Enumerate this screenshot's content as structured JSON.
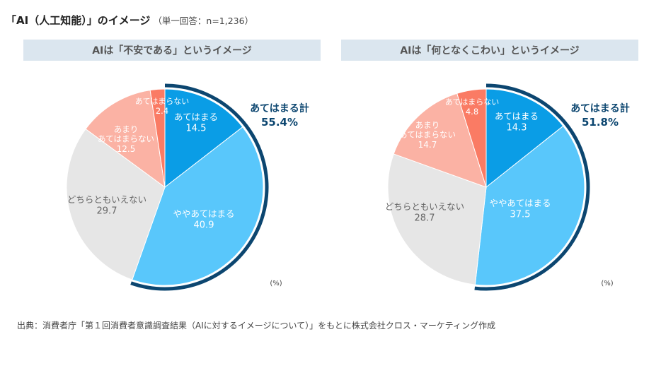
{
  "title": {
    "main": "「AI（人工知能）」のイメージ",
    "sub": "（単一回答：n=1,236）"
  },
  "colors": {
    "atehamaru": "#0a9de6",
    "yaya_atehamaru": "#59c7fb",
    "dochiratomo": "#e6e6e6",
    "amari": "#fbb2a4",
    "atehamaranai": "#fa7b64",
    "total_arc": "#0c4670",
    "header_bg": "#dbe6ef"
  },
  "unit_label": "(%)",
  "footer": "出典：消費者庁「第１回消費者意識調査結果（AIに対するイメージについて）」をもとに株式会社クロス・マーケティング作成",
  "chart_data": [
    {
      "type": "pie",
      "title": "AIは「不安である」というイメージ",
      "start": "12 o'clock, clockwise",
      "slices": [
        {
          "label": "あてはまる",
          "value": 14.5,
          "color_key": "atehamaru",
          "text_color": "#ffffff"
        },
        {
          "label": "ややあてはまる",
          "value": 40.9,
          "color_key": "yaya_atehamaru",
          "text_color": "#ffffff"
        },
        {
          "label": "どちらともいえない",
          "value": 29.7,
          "color_key": "dochiratomo",
          "text_color": "#666666"
        },
        {
          "label": "あまり\nあてはまらない",
          "value": 12.5,
          "color_key": "amari",
          "text_color": "#ffffff"
        },
        {
          "label": "あてはまらない",
          "value": 2.4,
          "color_key": "atehamaranai",
          "text_color": "#ffffff"
        }
      ],
      "total": {
        "label": "あてはまる計",
        "value": "55.4%",
        "covers": [
          "あてはまる",
          "ややあてはまる"
        ]
      }
    },
    {
      "type": "pie",
      "title": "AIは「何となくこわい」というイメージ",
      "start": "12 o'clock, clockwise",
      "slices": [
        {
          "label": "あてはまる",
          "value": 14.3,
          "color_key": "atehamaru",
          "text_color": "#ffffff"
        },
        {
          "label": "ややあてはまる",
          "value": 37.5,
          "color_key": "yaya_atehamaru",
          "text_color": "#ffffff"
        },
        {
          "label": "どちらともいえない",
          "value": 28.7,
          "color_key": "dochiratomo",
          "text_color": "#666666"
        },
        {
          "label": "あまり\nあてはまらない",
          "value": 14.7,
          "color_key": "amari",
          "text_color": "#ffffff"
        },
        {
          "label": "あてはまらない",
          "value": 4.8,
          "color_key": "atehamaranai",
          "text_color": "#ffffff"
        }
      ],
      "total": {
        "label": "あてはまる計",
        "value": "51.8%",
        "covers": [
          "あてはまる",
          "ややあてはまる"
        ]
      }
    }
  ]
}
